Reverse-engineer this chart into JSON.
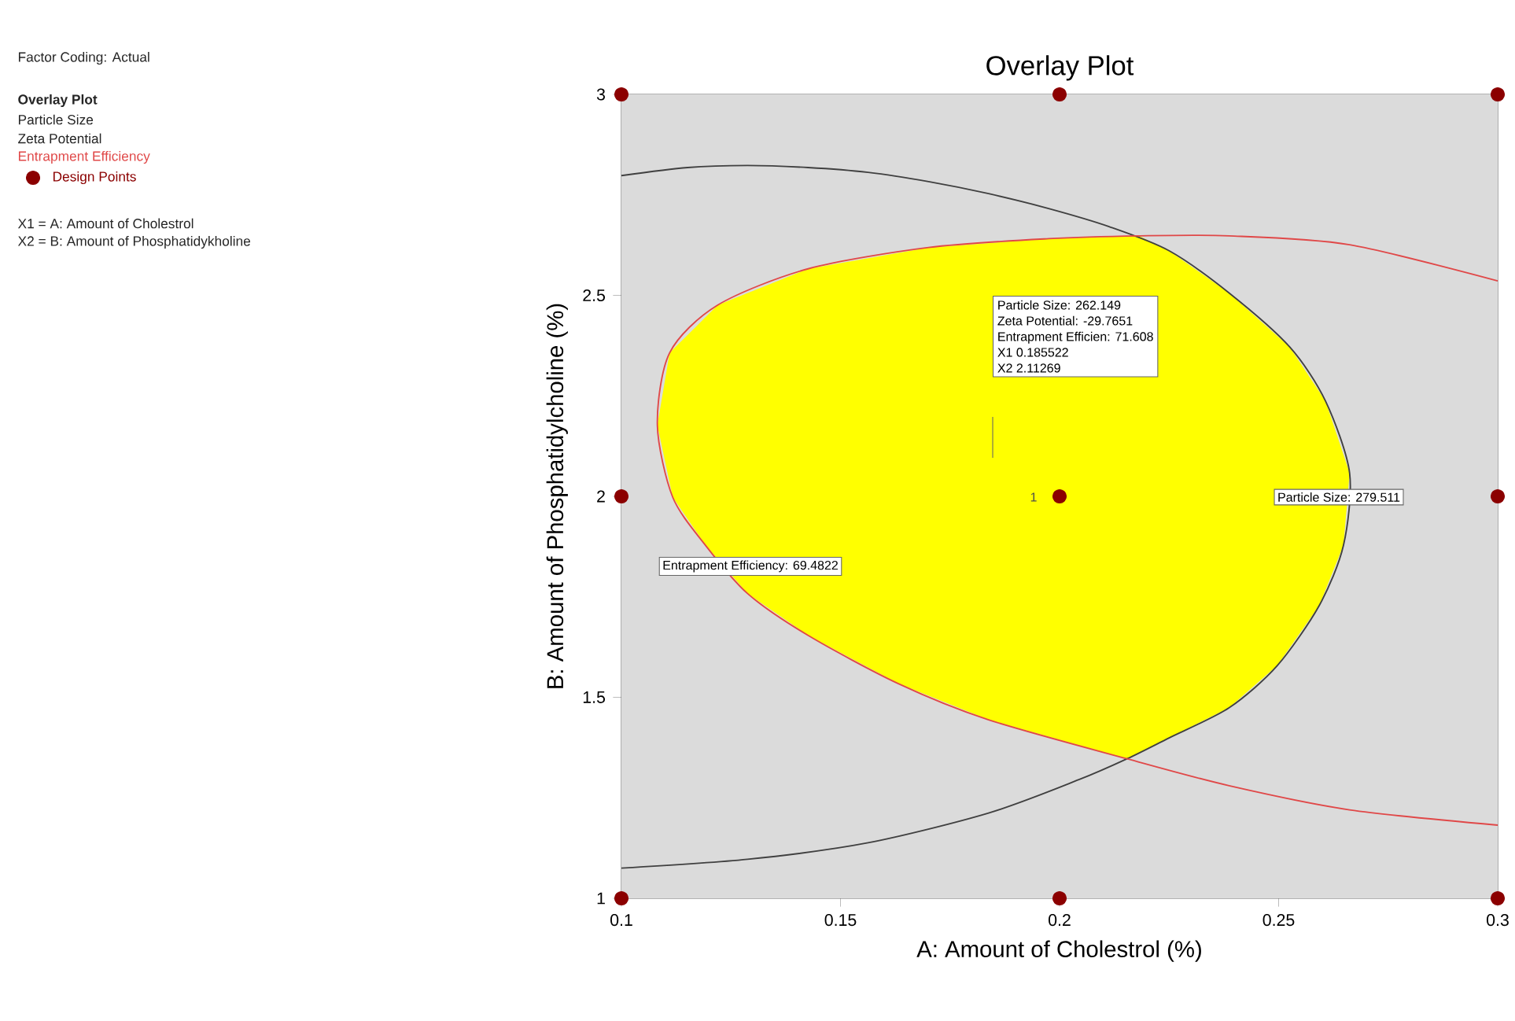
{
  "chart_data": {
    "type": "scatter",
    "title": "Overlay Plot",
    "xlabel": "A: Amount of Cholestrol (%)",
    "ylabel": "B: Amount of Phosphatidylcholine (%)",
    "xlim": [
      0.1,
      0.3
    ],
    "ylim": [
      1,
      3
    ],
    "xticks": [
      0.1,
      0.15,
      0.2,
      0.25,
      0.3
    ],
    "yticks": [
      1,
      1.5,
      2,
      2.5,
      3
    ],
    "legend": "left",
    "line_style": "solid",
    "series": [
      {
        "type": "area",
        "marker": "none",
        "color": "#ffff00",
        "x": [
          0.2181,
          0.1975,
          0.1701,
          0.1426,
          0.122,
          0.111,
          0.1082,
          0.1117,
          0.1192,
          0.1288,
          0.1426,
          0.1632,
          0.1838,
          0.2154,
          0.225,
          0.2387,
          0.2497,
          0.2593,
          0.2648,
          0.2662,
          0.2607,
          0.2525,
          0.2387,
          0.225
        ],
        "values": [
          2.648,
          2.641,
          2.619,
          2.566,
          2.476,
          2.357,
          2.177,
          1.998,
          1.878,
          1.758,
          1.654,
          1.534,
          1.444,
          1.347,
          1.399,
          1.474,
          1.579,
          1.729,
          1.878,
          2.058,
          2.237,
          2.372,
          2.506,
          2.611
        ]
      },
      {
        "type": "line",
        "marker": "none",
        "color": "#404040",
        "x": [
          0.1,
          0.1151,
          0.1288,
          0.1426,
          0.1563,
          0.1701,
          0.1838,
          0.1975,
          0.2113,
          0.225,
          0.2387,
          0.2525,
          0.2607,
          0.2662,
          0.2648,
          0.2593,
          0.2497,
          0.2387,
          0.225,
          0.2154,
          0.2044,
          0.1838,
          0.1563,
          0.1288,
          0.1
        ],
        "values": [
          2.798,
          2.818,
          2.823,
          2.818,
          2.806,
          2.783,
          2.753,
          2.716,
          2.671,
          2.611,
          2.506,
          2.372,
          2.237,
          2.058,
          1.878,
          1.729,
          1.579,
          1.474,
          1.399,
          1.347,
          1.295,
          1.212,
          1.138,
          1.097,
          1.075
        ]
      },
      {
        "type": "line",
        "marker": "none",
        "color": "#e04848",
        "x": [
          0.3,
          0.2662,
          0.2387,
          0.2181,
          0.1975,
          0.1701,
          0.1426,
          0.122,
          0.111,
          0.1082,
          0.1117,
          0.1192,
          0.1288,
          0.1426,
          0.1632,
          0.1838,
          0.2154,
          0.2387,
          0.2662,
          0.3
        ],
        "values": [
          2.536,
          2.626,
          2.648,
          2.648,
          2.641,
          2.619,
          2.566,
          2.476,
          2.357,
          2.177,
          1.998,
          1.878,
          1.758,
          1.654,
          1.534,
          1.444,
          1.347,
          1.28,
          1.22,
          1.182
        ]
      },
      {
        "marker": "circle",
        "name": "Design Points",
        "color": "#8b0000",
        "x": [
          0.1,
          0.2,
          0.3,
          0.1,
          0.2,
          0.3,
          0.1,
          0.2,
          0.3
        ],
        "values": [
          1,
          1,
          1,
          2,
          2,
          2,
          3,
          3,
          3
        ]
      }
    ],
    "annotations": [
      "Factor Coding: Actual",
      "**Overlay Plot**",
      "Particle Size",
      "Zeta Potential",
      "Entrapment Efficiency",
      "X1 = A: Amount of Cholestrol",
      "X2 = B: Amount of Phosphatidykholine",
      "Particle Size:  262.149",
      "Zeta Potential:  -29.7651",
      "Entrapment Efficien:  71.608",
      "X1  0.185522",
      "X2  2.11269",
      "Particle Size: 279.511",
      "Entrapment Efficiency: 69.4822",
      "1"
    ]
  }
}
